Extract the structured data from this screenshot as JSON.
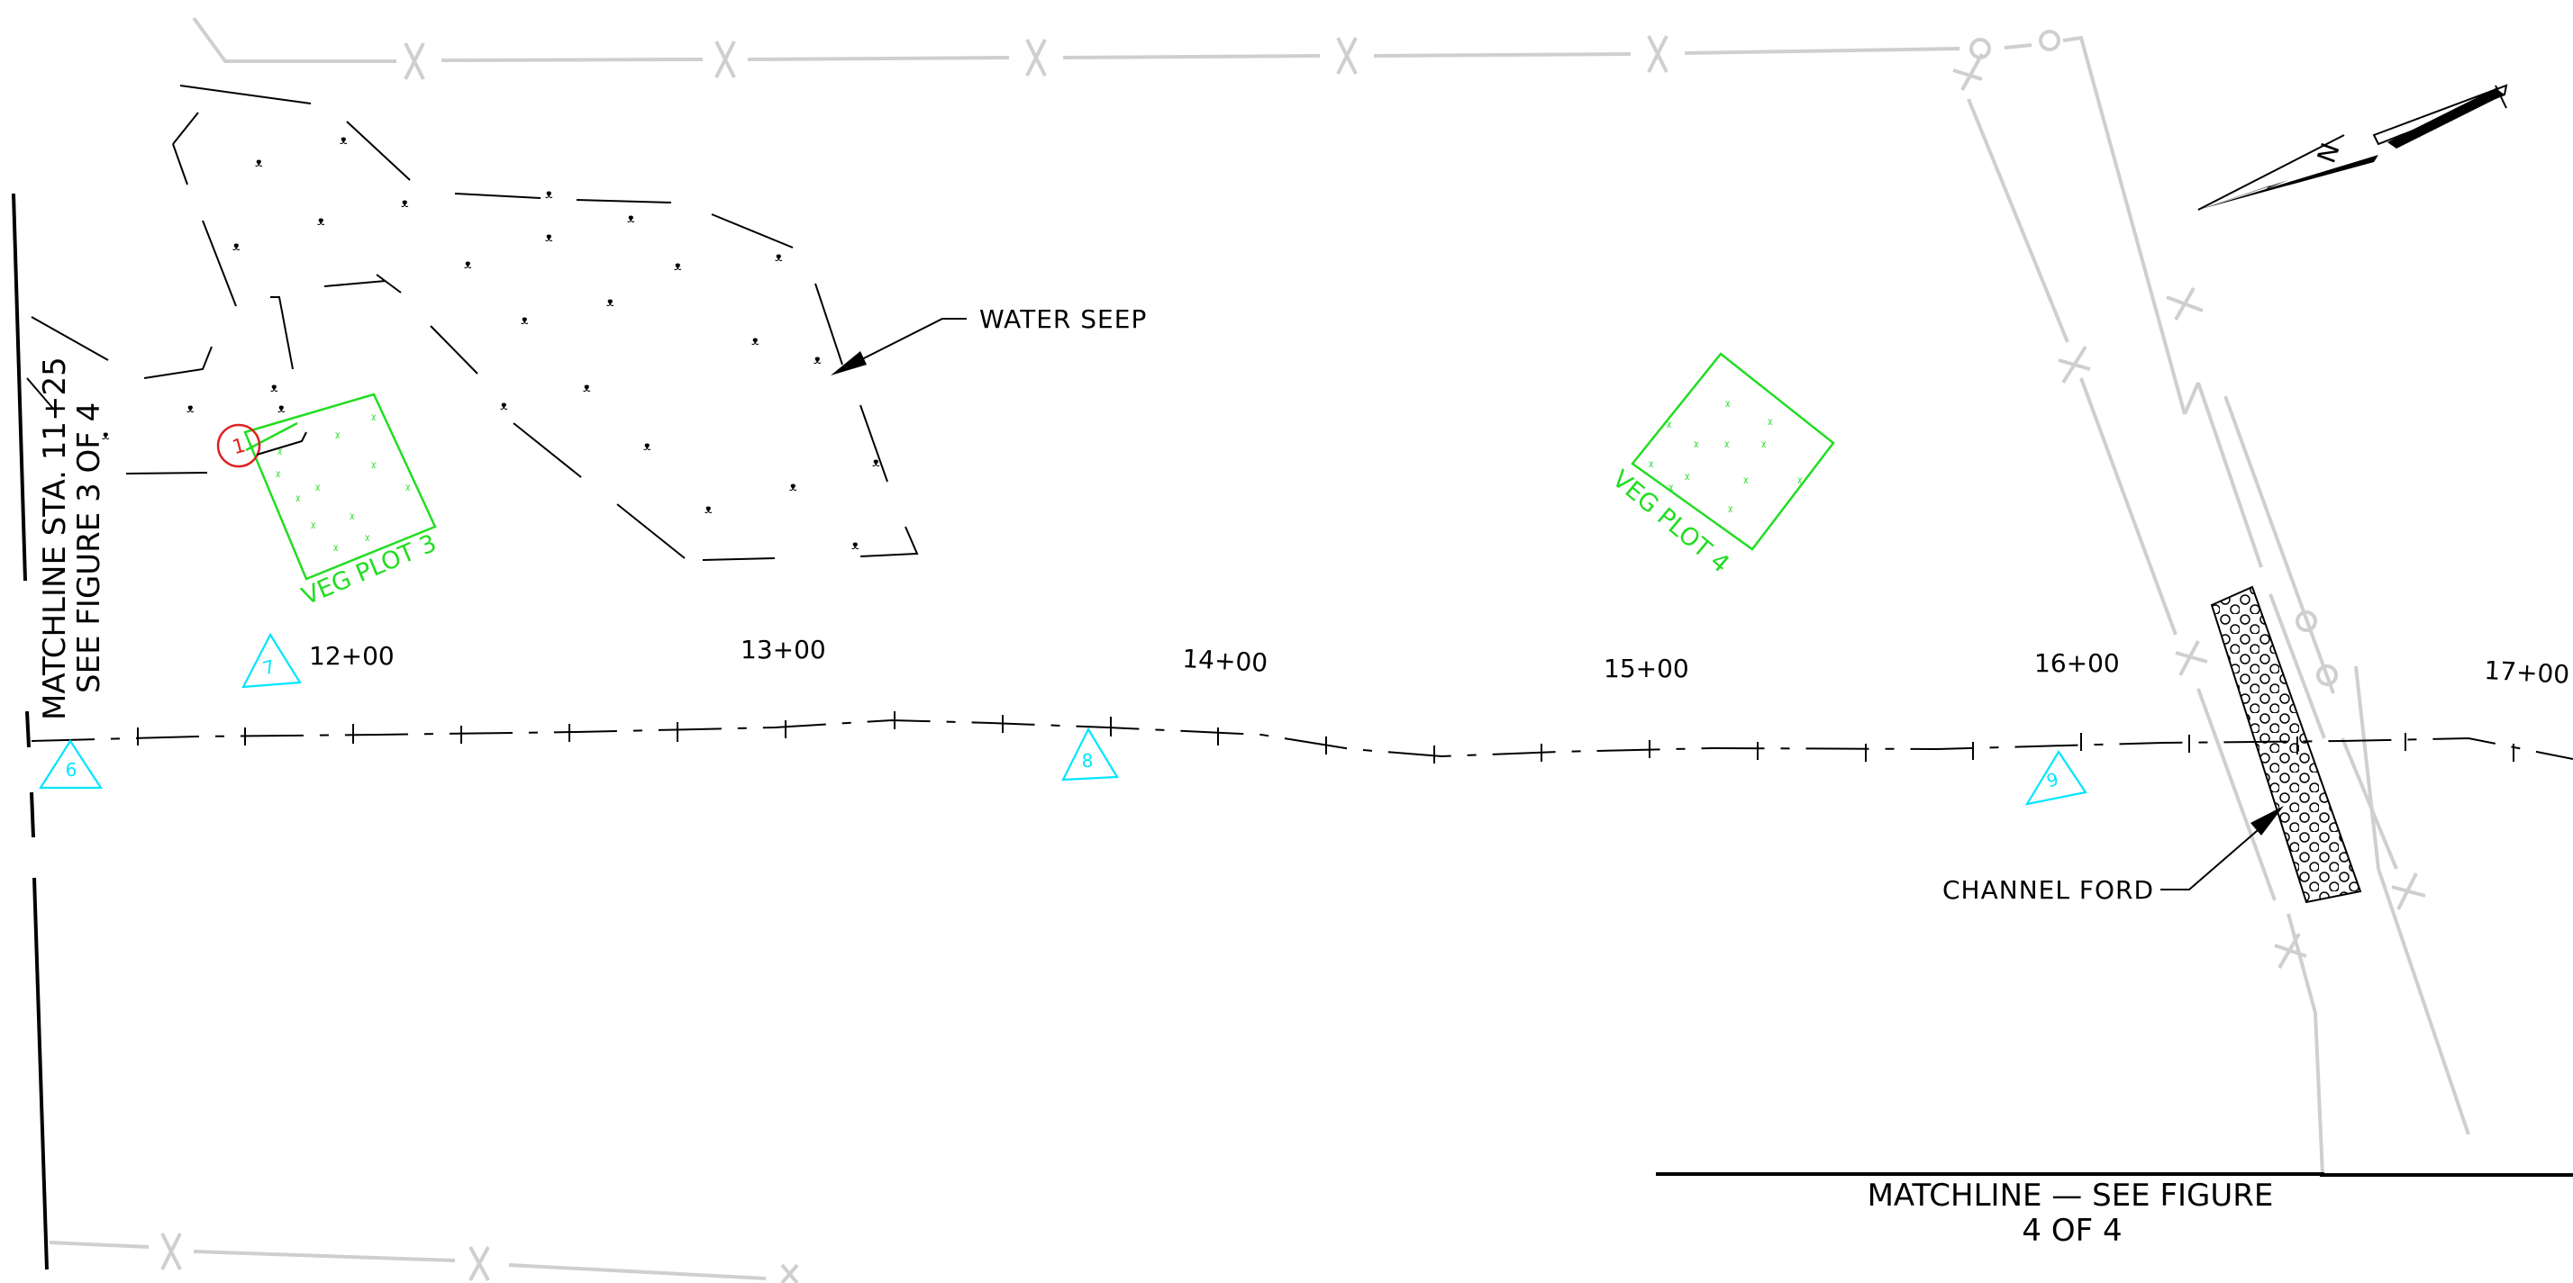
{
  "colors": {
    "background": "#ffffff",
    "linework": "#000000",
    "fence": "#cfcfcf",
    "veg_plot": "#22dd22",
    "photo_point": "#00e5ff",
    "marker": "#e02020"
  },
  "labels": {
    "water_seep": "WATER SEEP",
    "channel_ford": "CHANNEL FORD",
    "veg_plot_3": "VEG PLOT 3",
    "veg_plot_4": "VEG PLOT 4",
    "matchline_left_1": "MATCHLINE STA. 11+25",
    "matchline_left_2": "SEE FIGURE 3 OF 4",
    "matchline_bottom_1": "MATCHLINE — SEE FIGURE",
    "matchline_bottom_2": "4 OF 4",
    "north_arrow": "N"
  },
  "stations": [
    "12+00",
    "13+00",
    "14+00",
    "15+00",
    "16+00",
    "17+00"
  ],
  "photo_points": [
    "6",
    "7",
    "8",
    "9"
  ],
  "markers": [
    "1"
  ]
}
